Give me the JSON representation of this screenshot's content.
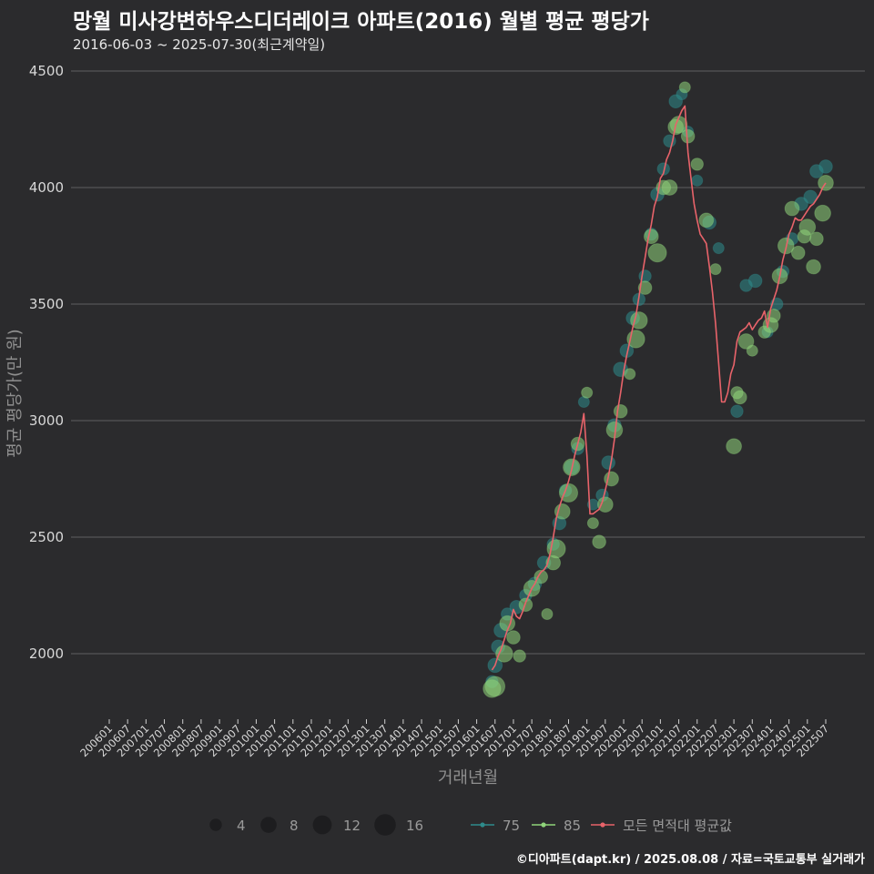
{
  "header": {
    "title": "망월 미사강변하우스디더레이크 아파트(2016) 월별 평균 평당가",
    "subtitle": "2016-06-03 ~ 2025-07-30(최근계약일)"
  },
  "credit": "©디아파트(dapt.kr) / 2025.08.08 / 자료=국토교통부 실거래가",
  "colors": {
    "background": "#2b2b2d",
    "grid": "#5f5f61",
    "area75": "#2e8b8b",
    "area85": "#8fd47a",
    "avg_line": "#e8636a"
  },
  "chart_data": {
    "type": "scatter",
    "title": "망월 미사강변하우스디더레이크 아파트(2016) 월별 평균 평당가",
    "xlabel": "거래년월",
    "ylabel": "평균 평당가(만 원)",
    "ylim": [
      1750,
      4500
    ],
    "yticks": [
      2000,
      2500,
      3000,
      3500,
      4000,
      4500
    ],
    "xticks": [
      "200601",
      "200607",
      "200701",
      "200707",
      "200801",
      "200807",
      "200901",
      "200907",
      "201001",
      "201007",
      "201101",
      "201107",
      "201201",
      "201207",
      "201301",
      "201307",
      "201401",
      "201407",
      "201501",
      "201507",
      "201601",
      "201607",
      "201701",
      "201707",
      "201801",
      "201807",
      "201901",
      "201907",
      "202001",
      "202007",
      "202101",
      "202107",
      "202201",
      "202207",
      "202301",
      "202307",
      "202401",
      "202407",
      "202501",
      "202507"
    ],
    "size_legend": {
      "label_values": [
        "4",
        "8",
        "12",
        "16"
      ],
      "sizes": [
        4,
        8,
        12,
        16
      ]
    },
    "grid": true,
    "legend_position": "bottom",
    "series": [
      {
        "name": "75",
        "kind": "points",
        "points": [
          [
            "2016-06",
            1880,
            4
          ],
          [
            "2016-07",
            1950,
            6
          ],
          [
            "2016-08",
            2030,
            5
          ],
          [
            "2016-09",
            2100,
            6
          ],
          [
            "2016-11",
            2170,
            4
          ],
          [
            "2017-02",
            2200,
            5
          ],
          [
            "2017-05",
            2250,
            4
          ],
          [
            "2017-08",
            2300,
            5
          ],
          [
            "2017-11",
            2390,
            5
          ],
          [
            "2018-02",
            2470,
            4
          ],
          [
            "2018-04",
            2560,
            5
          ],
          [
            "2018-06",
            2700,
            4
          ],
          [
            "2018-08",
            2800,
            6
          ],
          [
            "2018-10",
            2880,
            4
          ],
          [
            "2018-12",
            3080,
            3
          ],
          [
            "2019-03",
            2640,
            3
          ],
          [
            "2019-06",
            2680,
            4
          ],
          [
            "2019-08",
            2820,
            5
          ],
          [
            "2019-10",
            2980,
            5
          ],
          [
            "2019-12",
            3220,
            6
          ],
          [
            "2020-02",
            3300,
            5
          ],
          [
            "2020-04",
            3440,
            5
          ],
          [
            "2020-06",
            3520,
            4
          ],
          [
            "2020-08",
            3620,
            4
          ],
          [
            "2020-10",
            3800,
            4
          ],
          [
            "2020-12",
            3970,
            5
          ],
          [
            "2021-02",
            4080,
            4
          ],
          [
            "2021-04",
            4200,
            4
          ],
          [
            "2021-06",
            4370,
            5
          ],
          [
            "2021-08",
            4400,
            3
          ],
          [
            "2021-10",
            4240,
            3
          ],
          [
            "2022-01",
            4030,
            3
          ],
          [
            "2022-05",
            3850,
            5
          ],
          [
            "2022-08",
            3740,
            3
          ],
          [
            "2023-02",
            3040,
            4
          ],
          [
            "2023-05",
            3580,
            4
          ],
          [
            "2023-08",
            3600,
            5
          ],
          [
            "2023-12",
            3380,
            3
          ],
          [
            "2024-03",
            3500,
            4
          ],
          [
            "2024-05",
            3640,
            4
          ],
          [
            "2024-08",
            3780,
            4
          ],
          [
            "2024-11",
            3930,
            5
          ],
          [
            "2025-02",
            3960,
            5
          ],
          [
            "2025-04",
            4070,
            5
          ],
          [
            "2025-07",
            4090,
            5
          ]
        ]
      },
      {
        "name": "85",
        "kind": "points",
        "points": [
          [
            "2016-06",
            1850,
            10
          ],
          [
            "2016-07",
            1860,
            13
          ],
          [
            "2016-10",
            2000,
            9
          ],
          [
            "2016-11",
            2130,
            7
          ],
          [
            "2017-01",
            2070,
            5
          ],
          [
            "2017-03",
            1990,
            4
          ],
          [
            "2017-05",
            2210,
            5
          ],
          [
            "2017-07",
            2280,
            8
          ],
          [
            "2017-10",
            2330,
            5
          ],
          [
            "2017-12",
            2170,
            3
          ],
          [
            "2018-02",
            2390,
            6
          ],
          [
            "2018-03",
            2450,
            11
          ],
          [
            "2018-05",
            2610,
            7
          ],
          [
            "2018-07",
            2690,
            11
          ],
          [
            "2018-08",
            2800,
            9
          ],
          [
            "2018-10",
            2900,
            5
          ],
          [
            "2019-01",
            3120,
            3
          ],
          [
            "2019-03",
            2560,
            3
          ],
          [
            "2019-05",
            2480,
            5
          ],
          [
            "2019-07",
            2640,
            7
          ],
          [
            "2019-09",
            2750,
            6
          ],
          [
            "2019-10",
            2960,
            8
          ],
          [
            "2019-12",
            3040,
            5
          ],
          [
            "2020-03",
            3200,
            3
          ],
          [
            "2020-05",
            3350,
            10
          ],
          [
            "2020-06",
            3430,
            9
          ],
          [
            "2020-08",
            3570,
            5
          ],
          [
            "2020-10",
            3790,
            6
          ],
          [
            "2020-12",
            3720,
            11
          ],
          [
            "2021-02",
            4000,
            6
          ],
          [
            "2021-04",
            4000,
            7
          ],
          [
            "2021-06",
            4260,
            7
          ],
          [
            "2021-07",
            4270,
            9
          ],
          [
            "2021-09",
            4430,
            3
          ],
          [
            "2021-10",
            4220,
            5
          ],
          [
            "2022-01",
            4100,
            4
          ],
          [
            "2022-04",
            3860,
            6
          ],
          [
            "2022-07",
            3650,
            3
          ],
          [
            "2023-01",
            2890,
            7
          ],
          [
            "2023-02",
            3120,
            4
          ],
          [
            "2023-03",
            3100,
            5
          ],
          [
            "2023-05",
            3340,
            7
          ],
          [
            "2023-07",
            3300,
            3
          ],
          [
            "2023-11",
            3380,
            4
          ],
          [
            "2024-01",
            3410,
            7
          ],
          [
            "2024-02",
            3450,
            5
          ],
          [
            "2024-04",
            3620,
            7
          ],
          [
            "2024-06",
            3750,
            8
          ],
          [
            "2024-08",
            3910,
            6
          ],
          [
            "2024-10",
            3720,
            5
          ],
          [
            "2024-12",
            3790,
            5
          ],
          [
            "2025-01",
            3830,
            8
          ],
          [
            "2025-03",
            3660,
            6
          ],
          [
            "2025-04",
            3780,
            5
          ],
          [
            "2025-06",
            3890,
            8
          ],
          [
            "2025-07",
            4020,
            7
          ]
        ]
      },
      {
        "name": "모든 면적대 평균값",
        "kind": "line",
        "points": [
          [
            "2016-06",
            1930
          ],
          [
            "2016-07",
            1950
          ],
          [
            "2016-08",
            1990
          ],
          [
            "2016-09",
            2020
          ],
          [
            "2016-10",
            2060
          ],
          [
            "2016-11",
            2100
          ],
          [
            "2016-12",
            2130
          ],
          [
            "2017-01",
            2190
          ],
          [
            "2017-02",
            2160
          ],
          [
            "2017-03",
            2150
          ],
          [
            "2017-04",
            2180
          ],
          [
            "2017-05",
            2220
          ],
          [
            "2017-06",
            2250
          ],
          [
            "2017-07",
            2280
          ],
          [
            "2017-08",
            2300
          ],
          [
            "2017-09",
            2330
          ],
          [
            "2017-10",
            2350
          ],
          [
            "2017-11",
            2360
          ],
          [
            "2017-12",
            2380
          ],
          [
            "2018-01",
            2430
          ],
          [
            "2018-02",
            2500
          ],
          [
            "2018-03",
            2580
          ],
          [
            "2018-04",
            2630
          ],
          [
            "2018-05",
            2670
          ],
          [
            "2018-06",
            2700
          ],
          [
            "2018-07",
            2740
          ],
          [
            "2018-08",
            2790
          ],
          [
            "2018-09",
            2850
          ],
          [
            "2018-10",
            2900
          ],
          [
            "2018-11",
            2950
          ],
          [
            "2018-12",
            3030
          ],
          [
            "2019-01",
            2850
          ],
          [
            "2019-02",
            2600
          ],
          [
            "2019-03",
            2600
          ],
          [
            "2019-04",
            2610
          ],
          [
            "2019-05",
            2620
          ],
          [
            "2019-06",
            2650
          ],
          [
            "2019-07",
            2700
          ],
          [
            "2019-08",
            2760
          ],
          [
            "2019-09",
            2830
          ],
          [
            "2019-10",
            2920
          ],
          [
            "2019-11",
            3040
          ],
          [
            "2019-12",
            3120
          ],
          [
            "2020-01",
            3210
          ],
          [
            "2020-02",
            3280
          ],
          [
            "2020-03",
            3340
          ],
          [
            "2020-04",
            3400
          ],
          [
            "2020-05",
            3450
          ],
          [
            "2020-06",
            3530
          ],
          [
            "2020-07",
            3620
          ],
          [
            "2020-08",
            3700
          ],
          [
            "2020-09",
            3780
          ],
          [
            "2020-10",
            3840
          ],
          [
            "2020-11",
            3920
          ],
          [
            "2020-12",
            3960
          ],
          [
            "2021-01",
            4040
          ],
          [
            "2021-02",
            4060
          ],
          [
            "2021-03",
            4120
          ],
          [
            "2021-04",
            4150
          ],
          [
            "2021-05",
            4200
          ],
          [
            "2021-06",
            4270
          ],
          [
            "2021-07",
            4300
          ],
          [
            "2021-08",
            4330
          ],
          [
            "2021-09",
            4350
          ],
          [
            "2021-10",
            4150
          ],
          [
            "2021-11",
            4040
          ],
          [
            "2021-12",
            3930
          ],
          [
            "2022-01",
            3860
          ],
          [
            "2022-02",
            3800
          ],
          [
            "2022-03",
            3780
          ],
          [
            "2022-04",
            3760
          ],
          [
            "2022-05",
            3660
          ],
          [
            "2022-06",
            3550
          ],
          [
            "2022-07",
            3420
          ],
          [
            "2022-08",
            3250
          ],
          [
            "2022-09",
            3080
          ],
          [
            "2022-10",
            3080
          ],
          [
            "2022-11",
            3120
          ],
          [
            "2022-12",
            3200
          ],
          [
            "2023-01",
            3240
          ],
          [
            "2023-02",
            3340
          ],
          [
            "2023-03",
            3380
          ],
          [
            "2023-04",
            3390
          ],
          [
            "2023-05",
            3400
          ],
          [
            "2023-06",
            3420
          ],
          [
            "2023-07",
            3390
          ],
          [
            "2023-08",
            3410
          ],
          [
            "2023-09",
            3430
          ],
          [
            "2023-10",
            3440
          ],
          [
            "2023-11",
            3470
          ],
          [
            "2023-12",
            3400
          ],
          [
            "2024-01",
            3480
          ],
          [
            "2024-02",
            3520
          ],
          [
            "2024-03",
            3560
          ],
          [
            "2024-04",
            3620
          ],
          [
            "2024-05",
            3690
          ],
          [
            "2024-06",
            3740
          ],
          [
            "2024-07",
            3800
          ],
          [
            "2024-08",
            3830
          ],
          [
            "2024-09",
            3870
          ],
          [
            "2024-10",
            3860
          ],
          [
            "2024-11",
            3860
          ],
          [
            "2024-12",
            3880
          ],
          [
            "2025-01",
            3900
          ],
          [
            "2025-02",
            3920
          ],
          [
            "2025-03",
            3930
          ],
          [
            "2025-04",
            3950
          ],
          [
            "2025-05",
            3970
          ],
          [
            "2025-06",
            4000
          ],
          [
            "2025-07",
            4020
          ]
        ]
      }
    ]
  }
}
